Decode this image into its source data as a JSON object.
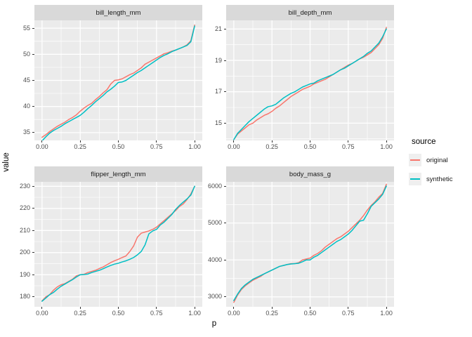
{
  "axis_titles": {
    "x": "p",
    "y": "value"
  },
  "legend": {
    "title": "source",
    "items": [
      {
        "label": "original",
        "color": "#F8766D"
      },
      {
        "label": "synthetic",
        "color": "#00BFC4"
      }
    ]
  },
  "colors": {
    "panel_bg": "#EBEBEB",
    "strip_bg": "#D9D9D9",
    "grid": "#FFFFFF",
    "tick": "#333333",
    "axis_text": "#4D4D4D",
    "original": "#F8766D",
    "synthetic": "#00BFC4"
  },
  "chart_data": {
    "type": "line",
    "x_label": "p",
    "y_label": "value",
    "legend_title": "source",
    "legend_position": "right",
    "grid": "on",
    "xlim": [
      -0.05,
      1.05
    ],
    "x_ticks": [
      0,
      0.25,
      0.5,
      0.75,
      1
    ],
    "x_tick_labels": [
      "0.00",
      "0.25",
      "0.50",
      "0.75",
      "1.00"
    ],
    "x_minor_ticks": [
      0.125,
      0.375,
      0.625,
      0.875
    ],
    "x": [
      0,
      0.025,
      0.05,
      0.075,
      0.1,
      0.125,
      0.15,
      0.175,
      0.2,
      0.225,
      0.25,
      0.275,
      0.3,
      0.325,
      0.35,
      0.375,
      0.4,
      0.425,
      0.45,
      0.475,
      0.5,
      0.525,
      0.55,
      0.575,
      0.6,
      0.625,
      0.65,
      0.675,
      0.7,
      0.725,
      0.75,
      0.775,
      0.8,
      0.825,
      0.85,
      0.875,
      0.9,
      0.925,
      0.95,
      0.975,
      1
    ],
    "series_meta": [
      {
        "name": "original",
        "color": "#F8766D"
      },
      {
        "name": "synthetic",
        "color": "#00BFC4"
      }
    ],
    "facets": [
      {
        "label": "bill_length_mm",
        "ylim": [
          33.5,
          56.5
        ],
        "y_ticks": [
          35,
          40,
          45,
          50,
          55
        ],
        "y_minor_ticks": [
          37.5,
          42.5,
          47.5,
          52.5
        ],
        "series": [
          {
            "name": "original",
            "values": [
              34.1,
              34.6,
              35.2,
              35.7,
              36.2,
              36.6,
              37,
              37.5,
              37.9,
              38.4,
              39.1,
              39.7,
              40.2,
              40.6,
              41.3,
              41.9,
              42.6,
              43.2,
              44.3,
              45,
              45.1,
              45.3,
              45.7,
              46.1,
              46.4,
              46.9,
              47.4,
              48.1,
              48.5,
              48.9,
              49.3,
              49.7,
              50.1,
              50.3,
              50.6,
              50.8,
              51.1,
              51.4,
              51.8,
              52.6,
              55.6
            ]
          },
          {
            "name": "synthetic",
            "values": [
              33.4,
              34.2,
              34.9,
              35.4,
              35.8,
              36.2,
              36.7,
              37.1,
              37.5,
              37.9,
              38.3,
              38.9,
              39.6,
              40.2,
              40.9,
              41.5,
              42.1,
              42.8,
              43.3,
              43.9,
              44.6,
              44.7,
              45,
              45.5,
              46,
              46.5,
              46.9,
              47.4,
              47.9,
              48.4,
              48.9,
              49.4,
              49.8,
              50.1,
              50.5,
              50.8,
              51.1,
              51.4,
              51.7,
              52.4,
              55.4
            ]
          }
        ]
      },
      {
        "label": "bill_depth_mm",
        "ylim": [
          13.9,
          21.55
        ],
        "y_ticks": [
          15,
          17,
          19,
          21
        ],
        "y_minor_ticks": [
          14,
          16,
          18,
          20
        ],
        "series": [
          {
            "name": "original",
            "values": [
              13.95,
              14.3,
              14.5,
              14.7,
              14.9,
              15,
              15.2,
              15.35,
              15.5,
              15.6,
              15.75,
              15.95,
              16.1,
              16.3,
              16.5,
              16.7,
              16.85,
              17,
              17.15,
              17.25,
              17.35,
              17.5,
              17.6,
              17.7,
              17.8,
              17.95,
              18.1,
              18.25,
              18.4,
              18.55,
              18.7,
              18.8,
              18.95,
              19.1,
              19.2,
              19.35,
              19.5,
              19.75,
              20,
              20.4,
              21.1
            ]
          },
          {
            "name": "synthetic",
            "values": [
              13.95,
              14.35,
              14.6,
              14.85,
              15.1,
              15.3,
              15.5,
              15.7,
              15.9,
              16.05,
              16.1,
              16.2,
              16.4,
              16.6,
              16.75,
              16.9,
              17,
              17.15,
              17.3,
              17.4,
              17.5,
              17.55,
              17.7,
              17.8,
              17.9,
              18,
              18.1,
              18.25,
              18.4,
              18.5,
              18.65,
              18.8,
              18.95,
              19.1,
              19.25,
              19.45,
              19.6,
              19.85,
              20.1,
              20.5,
              21
            ]
          }
        ]
      },
      {
        "label": "flipper_length_mm",
        "ylim": [
          175.5,
          232
        ],
        "y_ticks": [
          180,
          190,
          200,
          210,
          220,
          230
        ],
        "y_minor_ticks": [
          185,
          195,
          205,
          215,
          225
        ],
        "series": [
          {
            "name": "original",
            "values": [
              178.2,
              180,
              181,
              183,
              184.5,
              185.5,
              186,
              187,
              188,
              189.5,
              190,
              190.2,
              191,
              191.5,
              192,
              192.8,
              193.5,
              194.5,
              195.5,
              196.3,
              197,
              197.8,
              198.5,
              200.5,
              203,
              207,
              208.8,
              209.3,
              209.8,
              210.5,
              211.5,
              213,
              214.5,
              216,
              217.5,
              219,
              220.8,
              222,
              224,
              226.5,
              230
            ]
          },
          {
            "name": "synthetic",
            "values": [
              178,
              179.5,
              181,
              182,
              183.5,
              184.8,
              185.8,
              186.8,
              187.8,
              189,
              190,
              190.1,
              190.3,
              191,
              191.5,
              192,
              192.7,
              193.5,
              194.2,
              194.8,
              195.2,
              195.8,
              196.3,
              197,
              197.8,
              199,
              200.5,
              203.5,
              208.5,
              209.8,
              210.5,
              212.5,
              213.8,
              215.5,
              217.2,
              219.5,
              221.3,
              222.8,
              224.3,
              226,
              230
            ]
          }
        ]
      },
      {
        "label": "body_mass_g",
        "ylim": [
          2730,
          6115
        ],
        "y_ticks": [
          3000,
          4000,
          5000,
          6000
        ],
        "y_minor_ticks": [
          3500,
          4500,
          5500
        ],
        "series": [
          {
            "name": "original",
            "values": [
              2850,
              3050,
              3200,
              3300,
              3375,
              3450,
              3500,
              3550,
              3625,
              3675,
              3725,
              3775,
              3825,
              3850,
              3875,
              3900,
              3900,
              3925,
              4000,
              4025,
              4050,
              4125,
              4175,
              4250,
              4350,
              4425,
              4500,
              4575,
              4625,
              4700,
              4775,
              4875,
              4975,
              5075,
              5200,
              5350,
              5475,
              5575,
              5700,
              5800,
              6050
            ]
          },
          {
            "name": "synthetic",
            "values": [
              2900,
              3075,
              3225,
              3325,
              3400,
              3475,
              3525,
              3575,
              3625,
              3675,
              3725,
              3775,
              3825,
              3850,
              3875,
              3890,
              3900,
              3910,
              3950,
              4000,
              4000,
              4075,
              4125,
              4200,
              4275,
              4350,
              4425,
              4500,
              4550,
              4625,
              4700,
              4800,
              4925,
              5050,
              5075,
              5250,
              5450,
              5550,
              5650,
              5775,
              6000
            ]
          }
        ]
      }
    ]
  }
}
